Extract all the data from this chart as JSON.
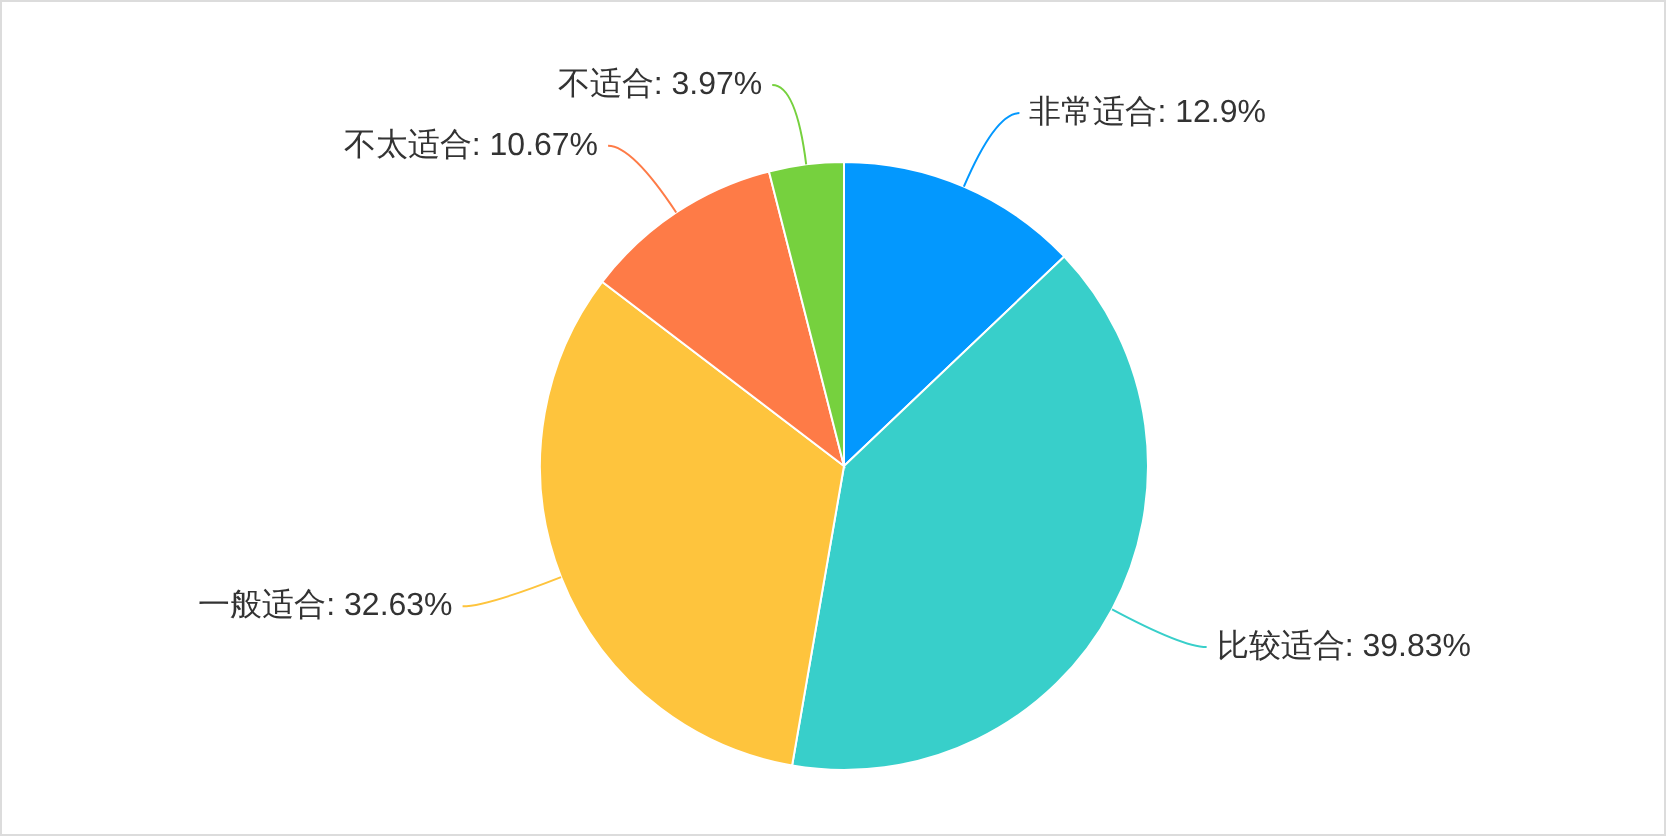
{
  "chart_data": {
    "type": "pie",
    "categories": [
      "非常适合",
      "比较适合",
      "一般适合",
      "不太适合",
      "不适合"
    ],
    "values": [
      12.9,
      39.83,
      32.63,
      10.67,
      3.97
    ],
    "colors": [
      "#0398fe",
      "#38cfca",
      "#fec43d",
      "#fe7b47",
      "#76d13e"
    ],
    "value_labels": [
      "12.9%",
      "39.83%",
      "32.63%",
      "10.67%",
      "3.97%"
    ]
  }
}
